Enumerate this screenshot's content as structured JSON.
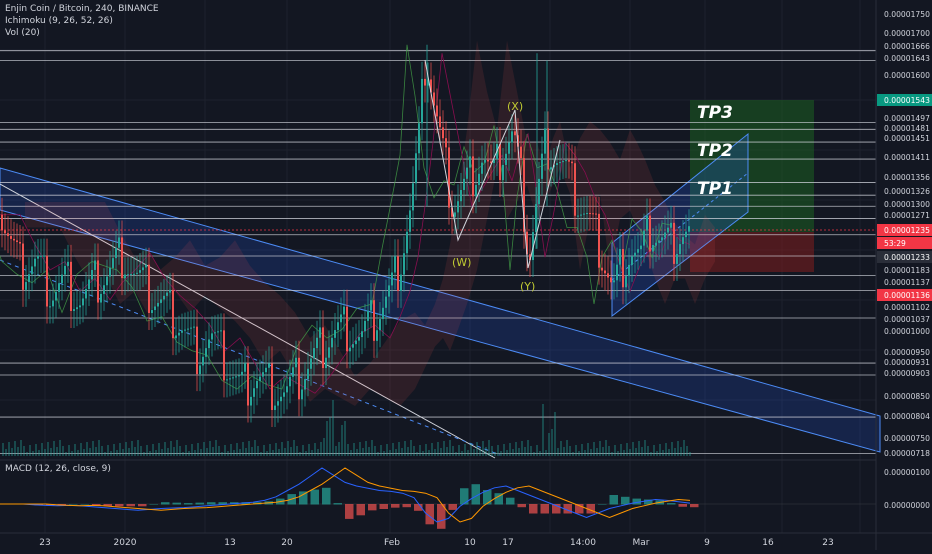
{
  "header": {
    "symbol_line": "Enjin Coin / Bitcoin, 240, BINANCE",
    "indicator_ichimoku": "Ichimoku (9, 26, 52, 26)",
    "indicator_vol": "Vol (20)",
    "macd_label": "MACD (12, 26, close, 9)"
  },
  "colors": {
    "background": "#131722",
    "grid": "#1e222d",
    "level_line": "#d1d4dc",
    "channel_fill": "#2962ff",
    "tp_zone": "#1b5e20",
    "sl_zone": "#7f1d1d",
    "candle_up": "#26a69a",
    "candle_down": "#ef5350",
    "macd_line": "#2962ff",
    "signal_line": "#ff9800",
    "label_green": "#089981",
    "label_red": "#f23645"
  },
  "annotations": {
    "tp1": "TP1",
    "tp2": "TP2",
    "tp3": "TP3",
    "wave_x": "(X)",
    "wave_w": "(W)",
    "wave_y": "(Y)"
  },
  "chart_data": {
    "type": "candlestick",
    "price_axis": {
      "ticks": [
        "0.00001750",
        "0.00001700",
        "0.00001666",
        "0.00001643",
        "0.00001600",
        "0.00001543",
        "0.00001497",
        "0.00001481",
        "0.00001451",
        "0.00001411",
        "0.00001356",
        "0.00001326",
        "0.00001300",
        "0.00001271",
        "0.00001235",
        "53:29",
        "0.00001233",
        "0.00001183",
        "0.00001137",
        "0.00001136",
        "0.00001102",
        "0.00001037",
        "0.00001000",
        "0.00000950",
        "0.00000931",
        "0.00000903",
        "0.00000850",
        "0.00000804",
        "0.00000750",
        "0.00000718"
      ],
      "highlight_tp": "0.00001543",
      "highlight_current": "0.00001235",
      "highlight_countdown": "53:29",
      "highlight_stop": "0.00001136"
    },
    "levels": [
      1.666e-05,
      1.643e-05,
      1.497e-05,
      1.481e-05,
      1.451e-05,
      1.411e-05,
      1.356e-05,
      1.326e-05,
      1.3e-05,
      1.271e-05,
      1.233e-05,
      1.183e-05,
      1.137e-05,
      1.102e-05,
      1.037e-05,
      9.31e-06,
      9.03e-06,
      8.04e-06,
      7.18e-06
    ],
    "time_axis": [
      "23",
      "2020",
      "13",
      "20",
      "Feb",
      "10",
      "17",
      "14:00",
      "Mar",
      "9",
      "16",
      "23"
    ],
    "macd_axis": [
      "0.00000100",
      "0.00000000"
    ],
    "price_path": [
      [
        0,
        1.28e-05
      ],
      [
        10,
        1.21e-05
      ],
      [
        20,
        1.15e-05
      ],
      [
        35,
        1.17e-05
      ],
      [
        50,
        1.1e-05
      ],
      [
        65,
        1.13e-05
      ],
      [
        80,
        1.08e-05
      ],
      [
        95,
        1.12e-05
      ],
      [
        110,
        1.15e-05
      ],
      [
        122,
        1.19e-05
      ],
      [
        135,
        1.13e-05
      ],
      [
        150,
        1.09e-05
      ],
      [
        165,
        1.06e-05
      ],
      [
        180,
        1.02e-05
      ],
      [
        195,
        9.6e-06
      ],
      [
        210,
        9.9e-06
      ],
      [
        225,
        9.3e-06
      ],
      [
        240,
        8.7e-06
      ],
      [
        255,
        9e-06
      ],
      [
        270,
        8.8e-06
      ],
      [
        285,
        8.6e-06
      ],
      [
        300,
        9e-06
      ],
      [
        315,
        9.5e-06
      ],
      [
        330,
        1e-05
      ],
      [
        345,
        1.02e-05
      ],
      [
        360,
        9.9e-06
      ],
      [
        375,
        1.04e-05
      ],
      [
        390,
        1.1e-05
      ],
      [
        400,
        1.18e-05
      ],
      [
        410,
        1.3e-05
      ],
      [
        418,
        1.45e-05
      ],
      [
        425,
        1.66e-05
      ],
      [
        433,
        1.54e-05
      ],
      [
        442,
        1.42e-05
      ],
      [
        452,
        1.3e-05
      ],
      [
        462,
        1.34e-05
      ],
      [
        472,
        1.38e-05
      ],
      [
        482,
        1.42e-05
      ],
      [
        492,
        1.36e-05
      ],
      [
        502,
        1.43e-05
      ],
      [
        512,
        1.47e-05
      ],
      [
        520,
        1.36e-05
      ],
      [
        528,
        1.18e-05
      ],
      [
        535,
        1.3e-05
      ],
      [
        545,
        1.45e-05
      ],
      [
        555,
        1.42e-05
      ],
      [
        565,
        1.38e-05
      ],
      [
        575,
        1.32e-05
      ],
      [
        585,
        1.28e-05
      ],
      [
        595,
        1.23e-05
      ],
      [
        605,
        1.16e-05
      ],
      [
        612,
        1.1e-05
      ],
      [
        620,
        1.16e-05
      ],
      [
        630,
        1.2e-05
      ],
      [
        640,
        1.18e-05
      ],
      [
        650,
        1.25e-05
      ],
      [
        660,
        1.22e-05
      ],
      [
        670,
        1.21e-05
      ],
      [
        680,
        1.24e-05
      ],
      [
        690,
        1.235e-05
      ]
    ],
    "macd": [
      0,
      0,
      0,
      -2,
      -3,
      -4,
      -3,
      -4,
      -6,
      -8,
      -10,
      -12,
      -14,
      -12,
      -10,
      -9,
      -8,
      -6,
      -4,
      -2,
      0,
      2,
      4,
      8,
      16,
      30,
      44,
      62,
      80,
      64,
      48,
      40,
      35,
      30,
      28,
      24,
      14,
      -20,
      -40,
      -32,
      -5,
      12,
      26,
      36,
      40,
      30,
      20,
      10,
      0,
      -10,
      -20,
      -30,
      -20,
      -10,
      -4,
      2,
      6,
      10,
      8,
      5,
      2
    ]
  }
}
